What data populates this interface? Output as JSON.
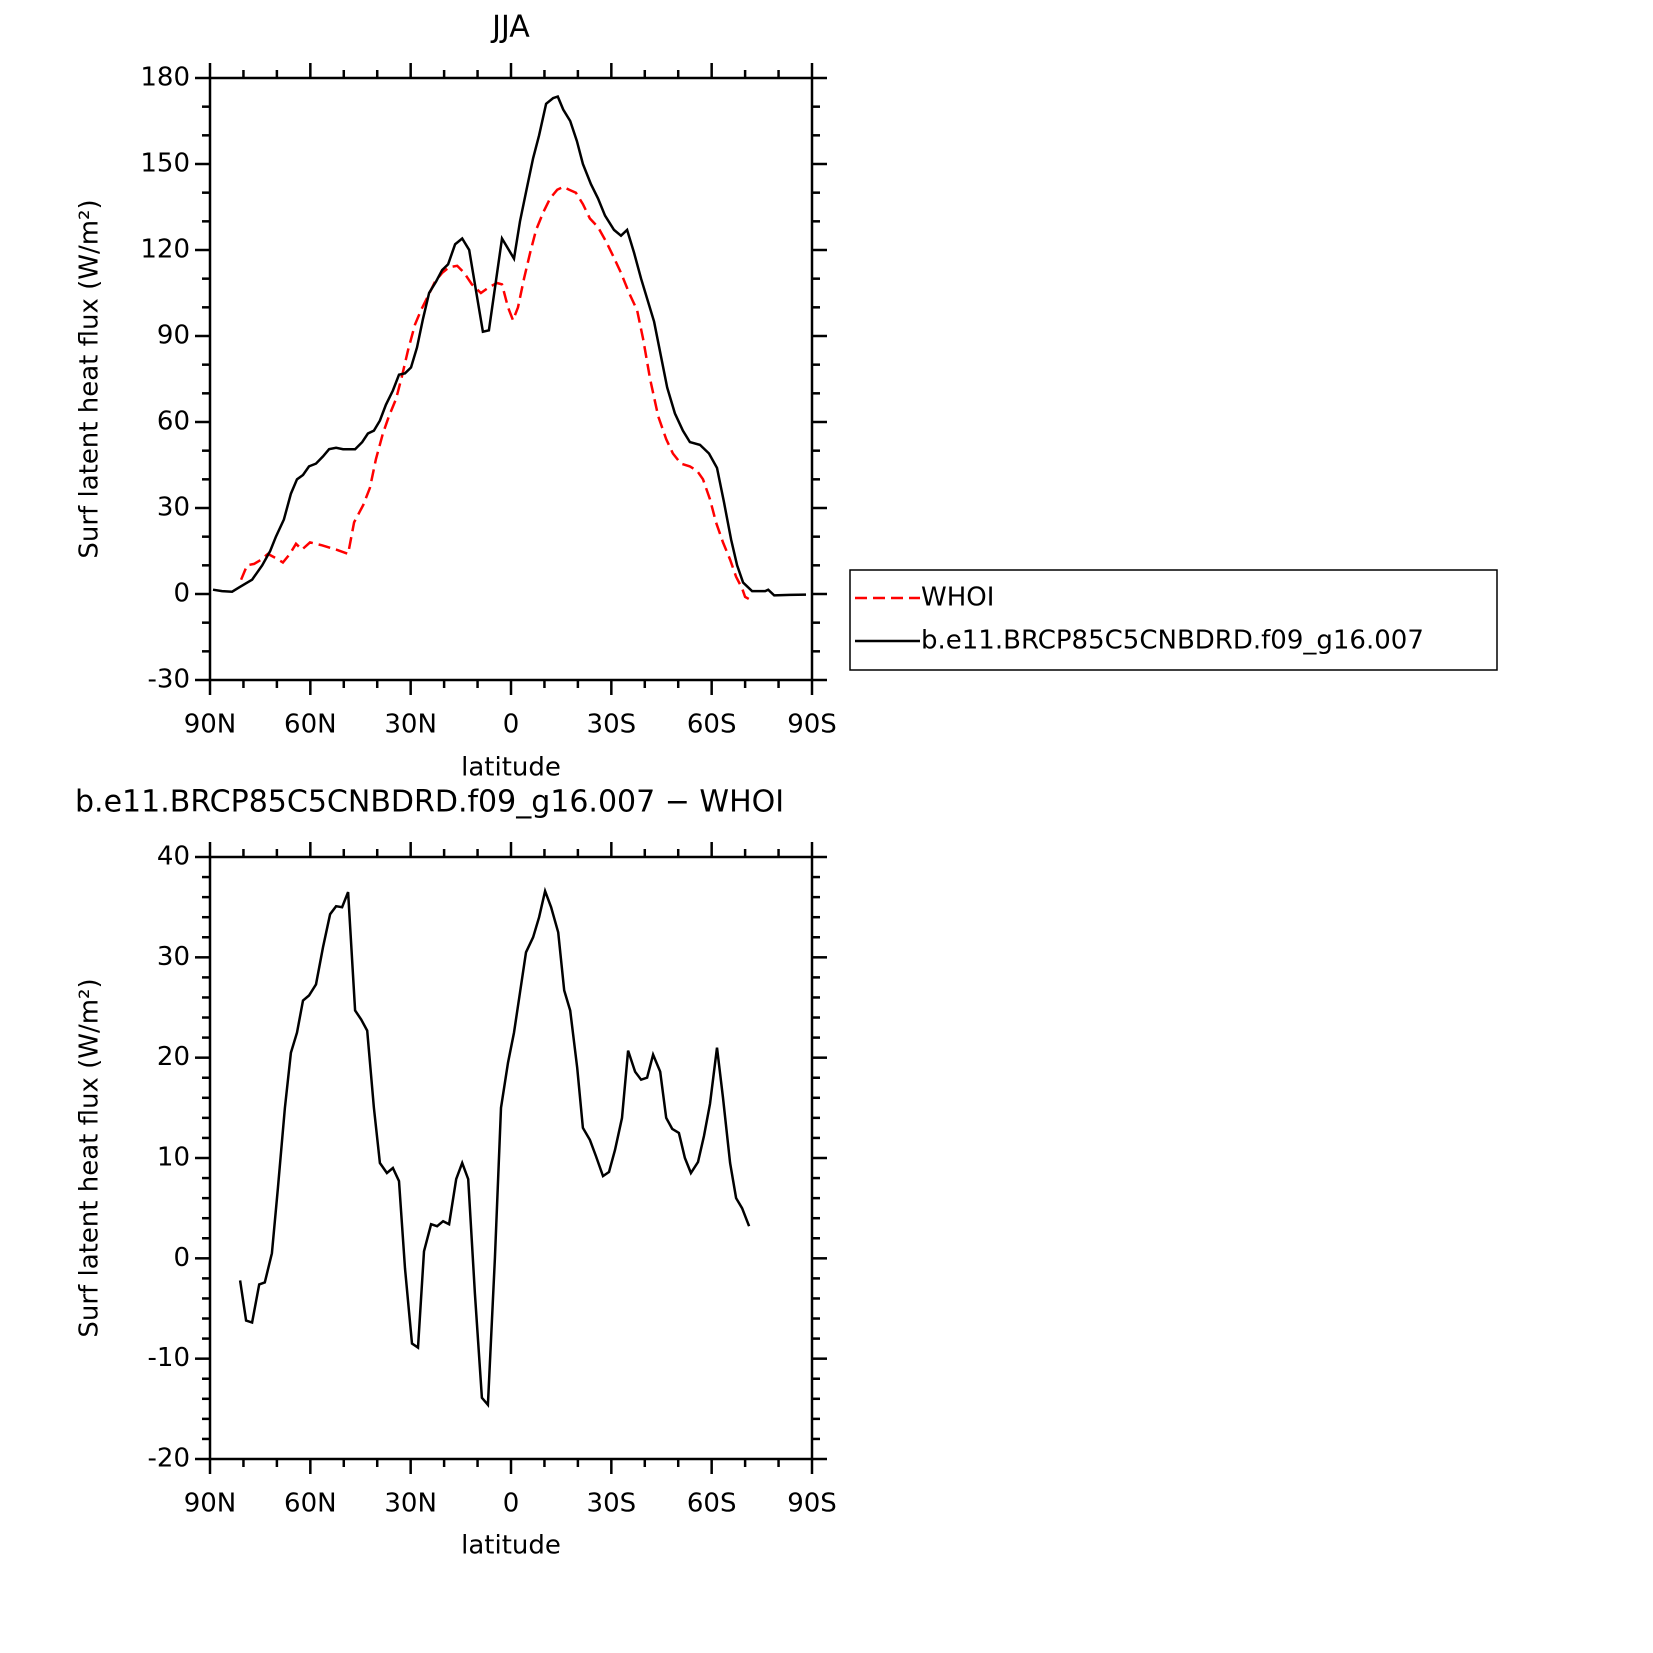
{
  "chart_data": [
    {
      "type": "line",
      "title": "JJA",
      "xlabel": "latitude",
      "ylabel": "Surf latent heat flux (W/m²)",
      "xlim": [
        90,
        -90
      ],
      "xticks": [
        {
          "value": 90,
          "label": "90N"
        },
        {
          "value": 60,
          "label": "60N"
        },
        {
          "value": 30,
          "label": "30N"
        },
        0,
        {
          "value": -30,
          "label": "30S"
        },
        {
          "value": -60,
          "label": "60S"
        },
        {
          "value": -90,
          "label": "90S"
        }
      ],
      "ylim": [
        -30,
        180
      ],
      "yticks": [
        -30,
        0,
        30,
        60,
        90,
        120,
        150,
        180
      ],
      "legend": "right",
      "series": [
        {
          "name": "WHOI",
          "color": "#ff0000",
          "dashed": true,
          "x": [
            80.7,
            78.9,
            76.8,
            74.7,
            72.7,
            70.3,
            68.2,
            66.1,
            64.3,
            62.5,
            60.1,
            56.5,
            52.3,
            48.7,
            46.9,
            44.2,
            42.2,
            40.4,
            38.3,
            36.5,
            34.4,
            32.6,
            30.8,
            28.7,
            26.9,
            24.8,
            22.7,
            20.6,
            18.5,
            16.1,
            14,
            11.7,
            9,
            6.6,
            4.2,
            2.7,
            0.9,
            -0.6,
            -2.1,
            -3.9,
            -5.7,
            -7.5,
            -9.6,
            -11.7,
            -13.8,
            -15.6,
            -17.4,
            -19.4,
            -21.5,
            -23.6,
            -26,
            -28.4,
            -30.5,
            -32.9,
            -35.3,
            -37.7,
            -39.5,
            -41.6,
            -44,
            -46.4,
            -48.4,
            -50.8,
            -53.5,
            -55.6,
            -57.4,
            -59.5,
            -61.3,
            -63.4,
            -65.5,
            -67.3,
            -69.1,
            -70,
            -71.5
          ],
          "values": [
            5,
            10,
            10.5,
            12,
            14,
            12.5,
            11,
            14,
            17.5,
            15.5,
            18,
            17,
            15.5,
            14,
            25,
            31,
            37,
            47,
            56,
            62,
            68,
            76,
            85,
            94,
            99,
            104,
            109,
            112,
            114,
            114.5,
            112,
            108,
            105,
            107,
            108.5,
            108,
            100,
            95.5,
            100,
            110,
            119,
            127,
            133,
            138,
            141,
            142,
            141,
            140,
            136,
            131,
            128,
            123,
            118,
            112,
            105,
            99,
            89,
            75,
            62,
            54,
            49,
            45.5,
            44.5,
            43,
            40,
            33,
            25,
            18,
            12,
            6,
            2,
            -1,
            -2
          ]
        },
        {
          "name": "b.e11.BRCP85C5CNBDRD.f09_g16.007",
          "color": "#000000",
          "dashed": false,
          "x": [
            89.1,
            86.4,
            83.4,
            81,
            77.4,
            74.4,
            72,
            70.3,
            67.9,
            65.8,
            64,
            62.2,
            60.4,
            58.3,
            56.2,
            54.4,
            52.3,
            50.2,
            46.6,
            44.5,
            42.8,
            41,
            39.2,
            37.4,
            35.3,
            33.5,
            31.7,
            29.9,
            28.1,
            26.3,
            24.5,
            22.4,
            20.6,
            18.8,
            16.7,
            14.6,
            12.5,
            10.5,
            8.4,
            6.6,
            2.7,
            -0.9,
            -2.7,
            -4.8,
            -6.6,
            -8.4,
            -10.5,
            -12.6,
            -14,
            -15.6,
            -17.7,
            -19.7,
            -21.5,
            -23.9,
            -26,
            -28.1,
            -30.8,
            -32.9,
            -34.7,
            -36.8,
            -38.9,
            -42.8,
            -46.7,
            -49,
            -51.4,
            -53.5,
            -56.5,
            -59.2,
            -61.6,
            -63.7,
            -65.8,
            -67.6,
            -69.4,
            -72.1,
            -76,
            -76.9,
            -78.7,
            -83.4,
            -88.2
          ],
          "values": [
            1.5,
            1,
            0.8,
            2.5,
            5,
            10,
            15,
            20,
            26,
            35,
            40,
            41.5,
            44.5,
            45.5,
            48,
            50.5,
            51,
            50.5,
            50.5,
            53,
            56,
            57,
            60.5,
            66,
            71,
            76.5,
            77,
            79,
            86,
            96,
            105,
            109,
            113,
            115,
            122,
            124,
            120,
            106,
            91.5,
            92,
            124,
            117,
            130,
            142,
            152,
            160,
            171,
            173,
            173.5,
            169,
            165,
            158,
            150,
            143,
            138,
            132,
            127,
            125,
            127,
            119,
            110,
            95,
            72,
            63,
            57,
            53,
            52,
            49,
            44,
            32,
            19,
            10,
            4,
            1,
            1,
            1.5,
            -0.5,
            -0.3,
            -0.2
          ]
        }
      ]
    },
    {
      "type": "line",
      "title": "b.e11.BRCP85C5CNBDRD.f09_g16.007 − WHOI",
      "xlabel": "latitude",
      "ylabel": "Surf latent heat flux (W/m²)",
      "xlim": [
        90,
        -90
      ],
      "xticks": [
        {
          "value": 90,
          "label": "90N"
        },
        {
          "value": 60,
          "label": "60N"
        },
        {
          "value": 30,
          "label": "30N"
        },
        0,
        {
          "value": -30,
          "label": "30S"
        },
        {
          "value": -60,
          "label": "60S"
        },
        {
          "value": -90,
          "label": "90S"
        }
      ],
      "ylim": [
        -20,
        40
      ],
      "yticks": [
        -20,
        -10,
        0,
        10,
        20,
        30,
        40
      ],
      "color": "#000000",
      "x": [
        81,
        79.2,
        77.4,
        75.3,
        73.6,
        71.5,
        69.7,
        67.6,
        65.8,
        64,
        62.2,
        60.4,
        58.3,
        56.2,
        54.1,
        52.3,
        50.5,
        48.7,
        46.6,
        44.8,
        43,
        41,
        39.2,
        37.1,
        35.3,
        33.5,
        31.7,
        29.6,
        27.8,
        26,
        23.9,
        22.1,
        20.3,
        18.5,
        16.4,
        14.6,
        12.8,
        10.8,
        8.7,
        6.9,
        4.8,
        3,
        0.9,
        -0.9,
        -2.7,
        -4.5,
        -6.6,
        -8.4,
        -10.2,
        -12,
        -14.1,
        -15.9,
        -17.7,
        -19.8,
        -21.5,
        -23.6,
        -25.4,
        -27.5,
        -29.3,
        -31.1,
        -33.2,
        -35,
        -37.1,
        -38.9,
        -40.7,
        -42.5,
        -44.6,
        -46.4,
        -48.2,
        -50.2,
        -52,
        -53.8,
        -55.9,
        -57.7,
        -59.5,
        -61.6,
        -63.4,
        -65.5,
        -67.3,
        -69.1,
        -71.2
      ],
      "values": [
        -2.2,
        -6.2,
        -6.4,
        -2.6,
        -2.4,
        0.5,
        7,
        15,
        20.5,
        22.5,
        25.7,
        26.2,
        27.3,
        31,
        34.3,
        35.1,
        35,
        36.5,
        24.7,
        23.8,
        22.7,
        15,
        9.5,
        8.5,
        9,
        7.7,
        -1,
        -8.5,
        -8.9,
        0.7,
        3.4,
        3.2,
        3.7,
        3.4,
        7.9,
        9.5,
        7.9,
        -3.5,
        -13.9,
        -14.6,
        0,
        15,
        19.5,
        22.5,
        26.5,
        30.5,
        32,
        34,
        36.6,
        35,
        32.5,
        26.7,
        24.7,
        19,
        13,
        11.8,
        10.2,
        8.2,
        8.6,
        10.8,
        14,
        20.7,
        18.6,
        17.8,
        18,
        20.3,
        18.6,
        14,
        12.9,
        12.5,
        10,
        8.5,
        9.6,
        12.2,
        15.4,
        21,
        16,
        9.5,
        6,
        5,
        3.2
      ]
    }
  ]
}
